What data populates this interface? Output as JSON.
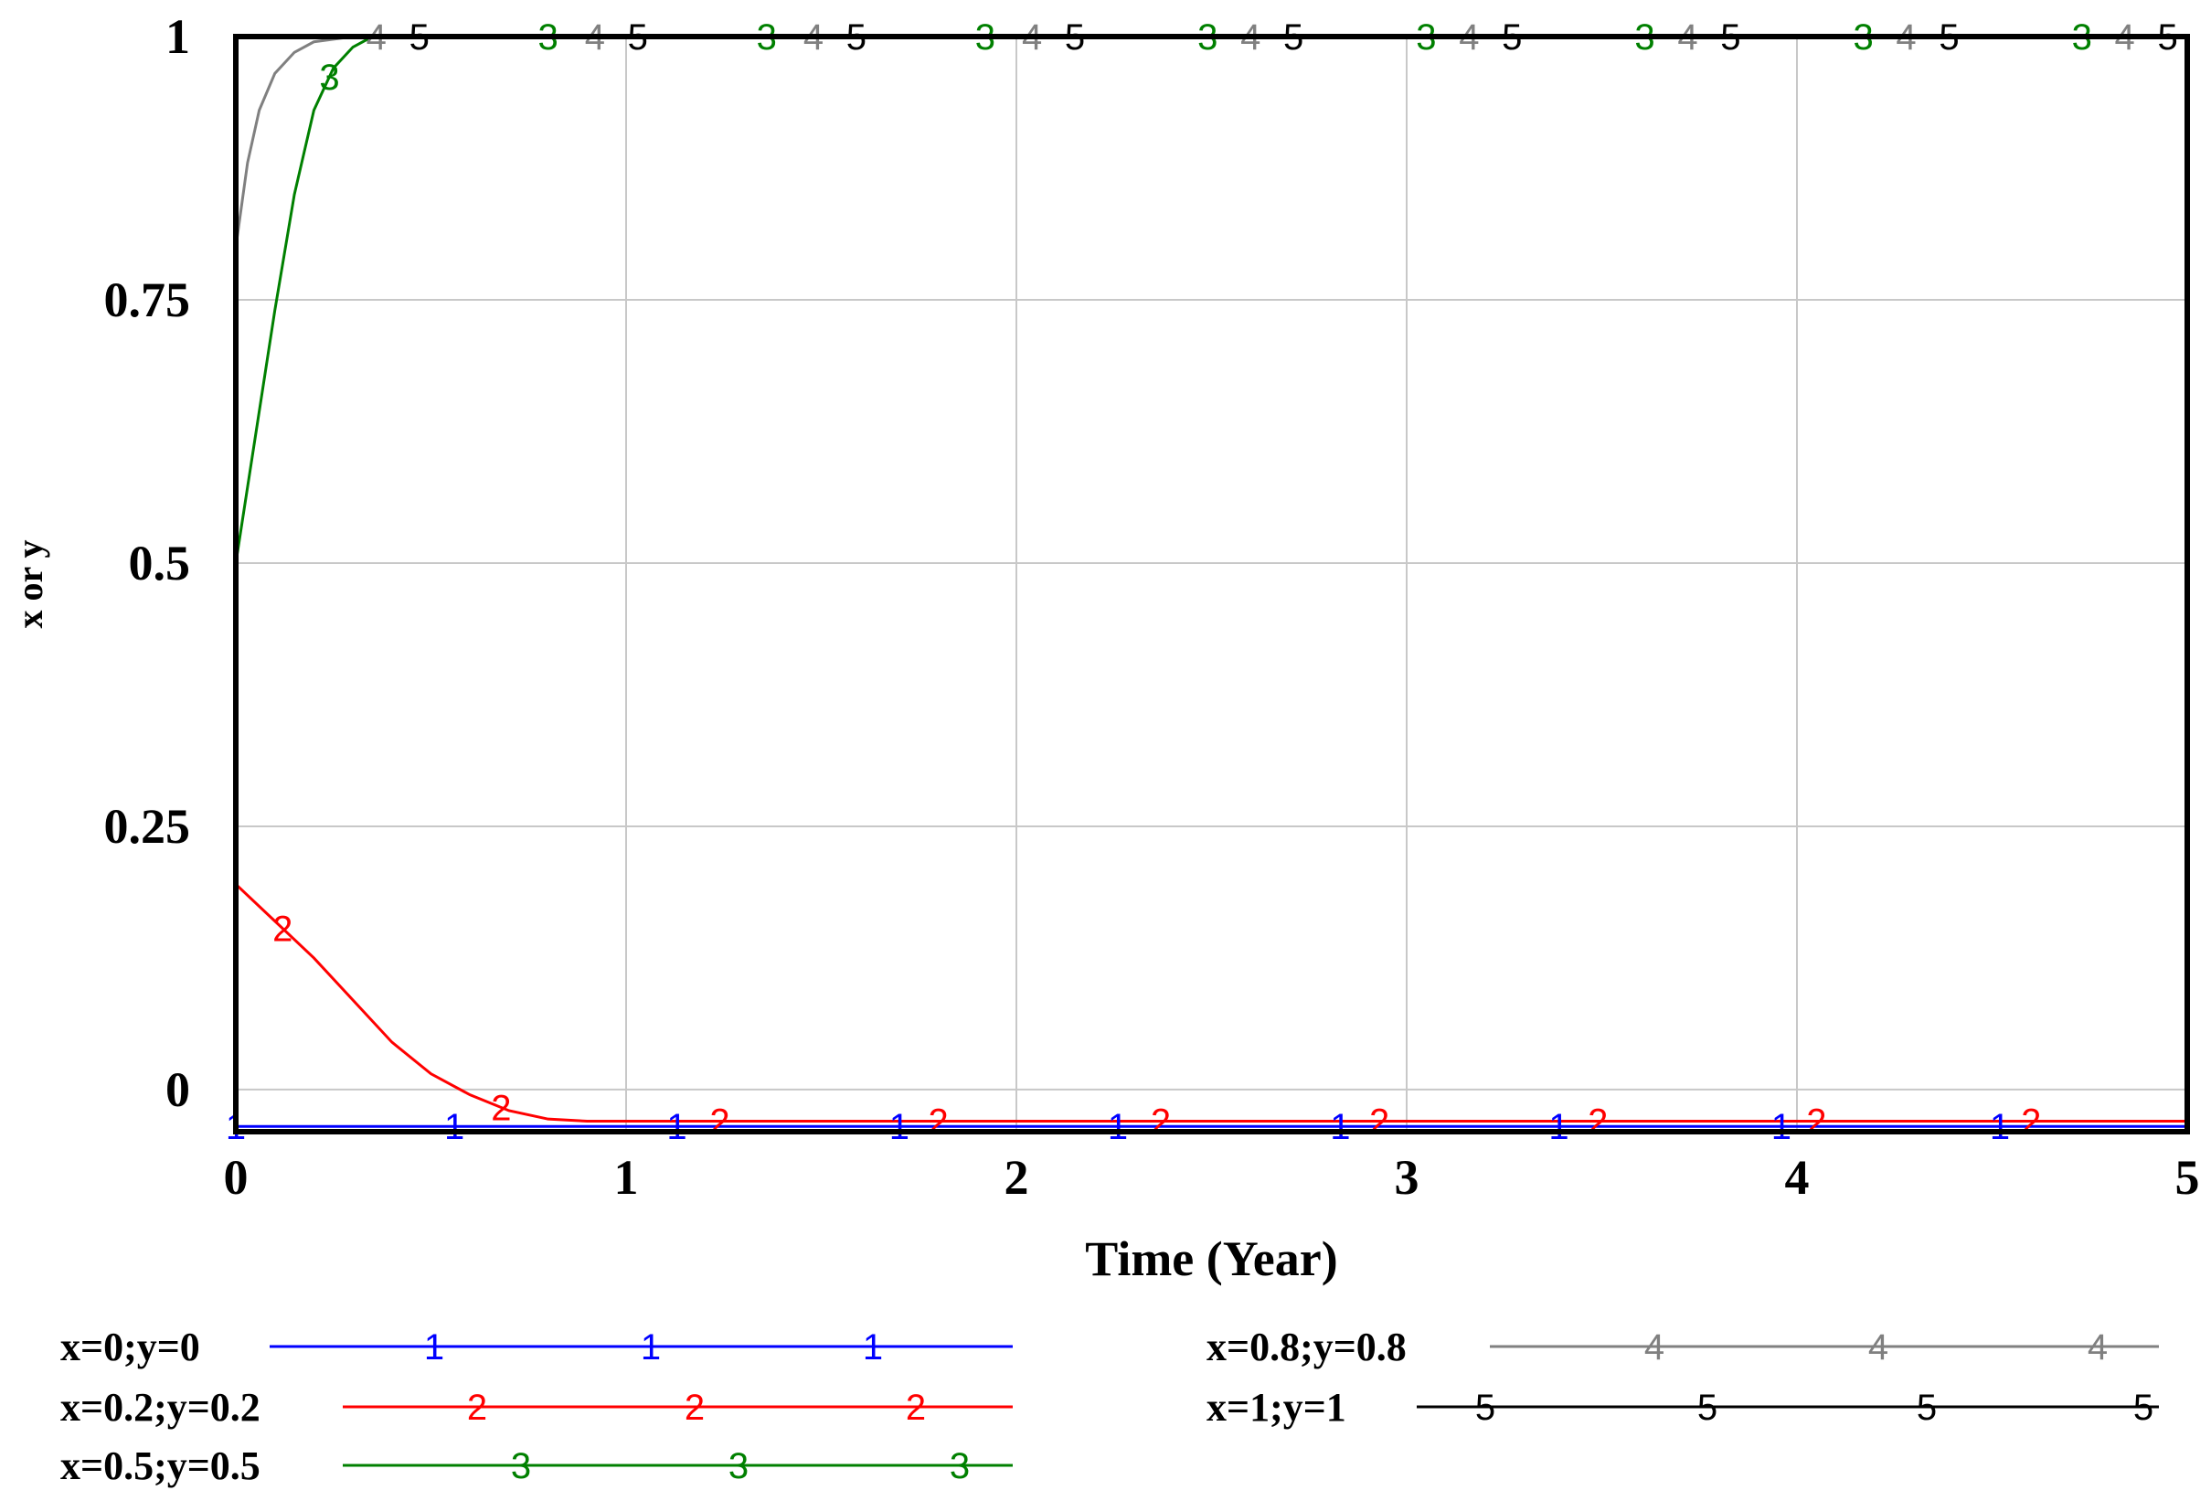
{
  "chart_data": {
    "type": "line",
    "title": "",
    "xlabel": "Time (Year)",
    "ylabel": "x or y",
    "xlim": [
      0,
      5
    ],
    "ylim": [
      -0.04,
      1.0
    ],
    "grid": true,
    "legend_position": "bottom",
    "x_ticks": [
      0,
      1,
      2,
      3,
      4,
      5
    ],
    "y_ticks": [
      {
        "value": 0,
        "label": "0"
      },
      {
        "value": 0.25,
        "label": "0.25"
      },
      {
        "value": 0.5,
        "label": "0.5"
      },
      {
        "value": 0.75,
        "label": "0.75"
      },
      {
        "value": 1,
        "label": "1"
      }
    ],
    "series": [
      {
        "name": "x=0;y=0",
        "marker": "1",
        "color": "#0000ff",
        "x": [
          0,
          5
        ],
        "y": [
          -0.035,
          -0.035
        ],
        "marker_x": [
          0,
          0.56,
          1.13,
          1.7,
          2.26,
          2.83,
          3.39,
          3.96,
          4.52
        ]
      },
      {
        "name": "x=0.2;y=0.2",
        "marker": "2",
        "color": "#ff0000",
        "x": [
          0,
          0.1,
          0.2,
          0.3,
          0.4,
          0.5,
          0.6,
          0.7,
          0.8,
          0.9,
          1.0,
          5
        ],
        "y": [
          0.195,
          0.16,
          0.125,
          0.085,
          0.045,
          0.015,
          -0.005,
          -0.02,
          -0.028,
          -0.03,
          -0.03,
          -0.03
        ],
        "marker_x": [
          0.12,
          0.68,
          1.24,
          1.8,
          2.37,
          2.93,
          3.49,
          4.05,
          4.6
        ]
      },
      {
        "name": "x=0.5;y=0.5",
        "marker": "3",
        "color": "#008000",
        "x": [
          0,
          0.05,
          0.1,
          0.15,
          0.2,
          0.25,
          0.3,
          0.35,
          0.4,
          0.5,
          5
        ],
        "y": [
          0.5,
          0.62,
          0.74,
          0.85,
          0.93,
          0.97,
          0.99,
          1.0,
          1.0,
          1.0,
          1.0
        ],
        "marker_x": [
          0.24,
          0.8,
          1.36,
          1.92,
          2.49,
          3.05,
          3.61,
          4.17,
          4.73
        ]
      },
      {
        "name": "x=0.8;y=0.8",
        "marker": "4",
        "color": "#808080",
        "x": [
          0,
          0.03,
          0.06,
          0.1,
          0.15,
          0.2,
          0.3,
          5
        ],
        "y": [
          0.8,
          0.88,
          0.93,
          0.965,
          0.985,
          0.995,
          1.0,
          1.0
        ],
        "marker_x": [
          0.36,
          0.92,
          1.48,
          2.04,
          2.6,
          3.16,
          3.72,
          4.28,
          4.84
        ]
      },
      {
        "name": "x=1;y=1",
        "marker": "5",
        "color": "#000000",
        "x": [
          0,
          5
        ],
        "y": [
          1.0,
          1.0
        ],
        "marker_x": [
          0.47,
          1.03,
          1.59,
          2.15,
          2.71,
          3.27,
          3.83,
          4.39,
          4.95
        ]
      }
    ]
  }
}
